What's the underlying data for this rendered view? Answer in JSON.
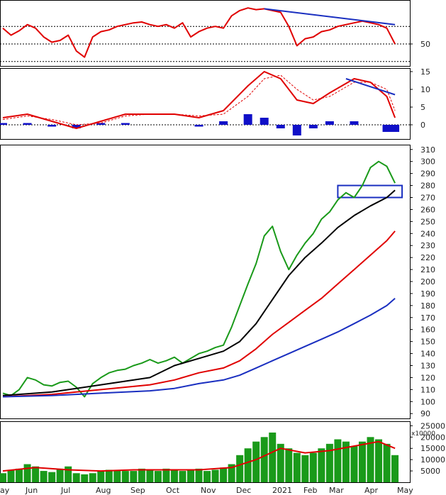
{
  "chart_data": [
    {
      "type": "line",
      "panel": "rsi",
      "y_ticks": [
        50
      ],
      "reference_levels": [
        30,
        50,
        70
      ],
      "ylim": [
        25,
        100
      ],
      "series": [
        {
          "color": "#e00000",
          "x": [
            "2020-05-25",
            "2020-06-01",
            "2020-06-08",
            "2020-06-15",
            "2020-06-22",
            "2020-06-29",
            "2020-07-06",
            "2020-07-13",
            "2020-07-20",
            "2020-07-27",
            "2020-08-03",
            "2020-08-10",
            "2020-08-17",
            "2020-08-24",
            "2020-08-31",
            "2020-09-07",
            "2020-09-14",
            "2020-09-21",
            "2020-09-28",
            "2020-10-05",
            "2020-10-12",
            "2020-10-19",
            "2020-10-26",
            "2020-11-02",
            "2020-11-09",
            "2020-11-16",
            "2020-11-23",
            "2020-11-30",
            "2020-12-07",
            "2020-12-14",
            "2020-12-21",
            "2020-12-28",
            "2021-01-04",
            "2021-01-11",
            "2021-01-18",
            "2021-01-25",
            "2021-02-01",
            "2021-02-08",
            "2021-02-15",
            "2021-02-22",
            "2021-03-01",
            "2021-03-08",
            "2021-03-15",
            "2021-03-22",
            "2021-03-29",
            "2021-04-05",
            "2021-04-12",
            "2021-04-19",
            "2021-04-26"
          ],
          "y": [
            68,
            60,
            65,
            72,
            68,
            58,
            52,
            54,
            60,
            42,
            35,
            58,
            64,
            66,
            70,
            72,
            74,
            75,
            72,
            70,
            72,
            68,
            74,
            58,
            64,
            68,
            70,
            68,
            82,
            88,
            91,
            89,
            90,
            88,
            86,
            70,
            48,
            56,
            58,
            64,
            66,
            70,
            72,
            74,
            76,
            74,
            72,
            68,
            50
          ]
        }
      ],
      "trendline": {
        "color": "#1a2fc0",
        "from": {
          "x": "2021-01-04",
          "y": 90
        },
        "to": {
          "x": "2021-04-26",
          "y": 72
        }
      }
    },
    {
      "type": "line",
      "panel": "macd",
      "y_ticks": [
        0,
        5,
        10,
        15
      ],
      "ylim": [
        -4,
        16
      ],
      "series": [
        {
          "color": "#e00000",
          "x": [
            "2020-05-25",
            "2020-06-15",
            "2020-07-06",
            "2020-07-27",
            "2020-08-17",
            "2020-09-07",
            "2020-09-28",
            "2020-10-19",
            "2020-11-09",
            "2020-11-30",
            "2020-12-21",
            "2021-01-04",
            "2021-01-18",
            "2021-02-01",
            "2021-02-15",
            "2021-03-01",
            "2021-03-22",
            "2021-04-05",
            "2021-04-19",
            "2021-04-26"
          ],
          "y": [
            2,
            3,
            1,
            -1,
            1,
            3,
            3,
            3,
            2,
            4,
            11,
            15,
            13,
            7,
            6,
            9,
            13,
            12,
            8,
            2
          ]
        },
        {
          "color": "#e00000",
          "dashed": true,
          "x": [
            "2020-05-25",
            "2020-06-15",
            "2020-07-06",
            "2020-07-27",
            "2020-08-17",
            "2020-09-07",
            "2020-09-28",
            "2020-10-19",
            "2020-11-09",
            "2020-11-30",
            "2020-12-21",
            "2021-01-04",
            "2021-01-18",
            "2021-02-01",
            "2021-02-15",
            "2021-03-01",
            "2021-03-22",
            "2021-04-05",
            "2021-04-19",
            "2021-04-26"
          ],
          "y": [
            1.5,
            2.5,
            1.5,
            0,
            0.5,
            2.5,
            3,
            3,
            2.5,
            3,
            8,
            13,
            14,
            10,
            7,
            8,
            12,
            12,
            10,
            4
          ]
        }
      ],
      "histogram": {
        "color": "#1010c8",
        "x": [
          "2020-05-25",
          "2020-06-15",
          "2020-07-06",
          "2020-07-27",
          "2020-08-17",
          "2020-09-07",
          "2020-09-28",
          "2020-10-19",
          "2020-11-09",
          "2020-11-30",
          "2020-12-21",
          "2021-01-04",
          "2021-01-18",
          "2021-02-01",
          "2021-02-15",
          "2021-03-01",
          "2021-03-22",
          "2021-04-05",
          "2021-04-19",
          "2021-04-26"
        ],
        "y": [
          0.5,
          0.5,
          -0.5,
          -1,
          0.5,
          0.5,
          0,
          0,
          -0.5,
          1,
          3,
          2,
          -1,
          -3,
          -1,
          1,
          1,
          0,
          -2,
          -2
        ]
      },
      "trendline": {
        "color": "#1a2fc0",
        "from": {
          "x": "2021-03-15",
          "y": 13
        },
        "to": {
          "x": "2021-04-26",
          "y": 8.5
        }
      }
    },
    {
      "type": "line",
      "panel": "price",
      "y_ticks": [
        90,
        100,
        110,
        120,
        130,
        140,
        150,
        160,
        170,
        180,
        190,
        200,
        210,
        220,
        230,
        240,
        250,
        260,
        270,
        280,
        290,
        300,
        310
      ],
      "ylim": [
        86,
        314
      ],
      "x_ticks": [
        "ay",
        "Jun",
        "Jul",
        "Aug",
        "Sep",
        "Oct",
        "Nov",
        "Dec",
        "2021",
        "Feb",
        "Mar",
        "Apr",
        "May"
      ],
      "series": [
        {
          "color": "#1a9a1a",
          "x": [
            "2020-05-25",
            "2020-06-01",
            "2020-06-08",
            "2020-06-15",
            "2020-06-22",
            "2020-06-29",
            "2020-07-06",
            "2020-07-13",
            "2020-07-20",
            "2020-07-27",
            "2020-08-03",
            "2020-08-10",
            "2020-08-17",
            "2020-08-24",
            "2020-08-31",
            "2020-09-07",
            "2020-09-14",
            "2020-09-21",
            "2020-09-28",
            "2020-10-05",
            "2020-10-12",
            "2020-10-19",
            "2020-10-26",
            "2020-11-02",
            "2020-11-09",
            "2020-11-16",
            "2020-11-23",
            "2020-11-30",
            "2020-12-07",
            "2020-12-14",
            "2020-12-21",
            "2020-12-28",
            "2021-01-04",
            "2021-01-11",
            "2021-01-18",
            "2021-01-25",
            "2021-02-01",
            "2021-02-08",
            "2021-02-15",
            "2021-02-22",
            "2021-03-01",
            "2021-03-08",
            "2021-03-15",
            "2021-03-22",
            "2021-03-29",
            "2021-04-05",
            "2021-04-12",
            "2021-04-19",
            "2021-04-26"
          ],
          "y": [
            107,
            105,
            110,
            120,
            118,
            114,
            113,
            116,
            117,
            112,
            104,
            115,
            120,
            124,
            126,
            127,
            130,
            132,
            135,
            132,
            134,
            137,
            132,
            136,
            140,
            142,
            145,
            147,
            162,
            180,
            198,
            215,
            238,
            246,
            225,
            210,
            222,
            232,
            240,
            252,
            258,
            268,
            274,
            270,
            280,
            295,
            300,
            296,
            282
          ]
        },
        {
          "color": "#000000",
          "x": [
            "2020-05-25",
            "2020-07-06",
            "2020-08-17",
            "2020-09-28",
            "2020-10-19",
            "2020-11-09",
            "2020-11-30",
            "2020-12-14",
            "2020-12-28",
            "2021-01-11",
            "2021-01-25",
            "2021-02-08",
            "2021-02-22",
            "2021-03-08",
            "2021-03-22",
            "2021-04-05",
            "2021-04-19",
            "2021-04-26"
          ],
          "y": [
            105,
            108,
            114,
            120,
            130,
            136,
            142,
            150,
            165,
            185,
            205,
            220,
            232,
            245,
            255,
            263,
            270,
            276
          ]
        },
        {
          "color": "#e00000",
          "x": [
            "2020-05-25",
            "2020-07-06",
            "2020-08-17",
            "2020-09-28",
            "2020-10-19",
            "2020-11-09",
            "2020-11-30",
            "2020-12-14",
            "2020-12-28",
            "2021-01-11",
            "2021-01-25",
            "2021-02-08",
            "2021-02-22",
            "2021-03-08",
            "2021-03-22",
            "2021-04-05",
            "2021-04-19",
            "2021-04-26"
          ],
          "y": [
            104,
            106,
            110,
            114,
            118,
            124,
            128,
            134,
            144,
            156,
            166,
            176,
            186,
            198,
            210,
            222,
            234,
            242
          ]
        },
        {
          "color": "#1a2fc0",
          "x": [
            "2020-05-25",
            "2020-07-06",
            "2020-08-17",
            "2020-09-28",
            "2020-10-19",
            "2020-11-09",
            "2020-11-30",
            "2020-12-14",
            "2020-12-28",
            "2021-01-11",
            "2021-01-25",
            "2021-02-08",
            "2021-02-22",
            "2021-03-08",
            "2021-03-22",
            "2021-04-05",
            "2021-04-19",
            "2021-04-26"
          ],
          "y": [
            104,
            105,
            107,
            109,
            111,
            115,
            118,
            122,
            128,
            134,
            140,
            146,
            152,
            158,
            165,
            172,
            180,
            186
          ]
        }
      ],
      "zone": {
        "color": "#1a2fc0",
        "x_from": "2021-03-08",
        "x_to": "2021-04-26",
        "y_from": 270,
        "y_to": 280
      }
    },
    {
      "type": "bar",
      "panel": "volume",
      "unit_label": "x10000",
      "y_ticks": [
        5000,
        10000,
        15000,
        20000,
        25000
      ],
      "ylim": [
        0,
        27000
      ],
      "series": [
        {
          "color": "#1a9a1a",
          "x": [
            "2020-05-25",
            "2020-06-01",
            "2020-06-08",
            "2020-06-15",
            "2020-06-22",
            "2020-06-29",
            "2020-07-06",
            "2020-07-13",
            "2020-07-20",
            "2020-07-27",
            "2020-08-03",
            "2020-08-10",
            "2020-08-17",
            "2020-08-24",
            "2020-08-31",
            "2020-09-07",
            "2020-09-14",
            "2020-09-21",
            "2020-09-28",
            "2020-10-05",
            "2020-10-12",
            "2020-10-19",
            "2020-10-26",
            "2020-11-02",
            "2020-11-09",
            "2020-11-16",
            "2020-11-23",
            "2020-11-30",
            "2020-12-07",
            "2020-12-14",
            "2020-12-21",
            "2020-12-28",
            "2021-01-04",
            "2021-01-11",
            "2021-01-18",
            "2021-01-25",
            "2021-02-01",
            "2021-02-08",
            "2021-02-15",
            "2021-02-22",
            "2021-03-01",
            "2021-03-08",
            "2021-03-15",
            "2021-03-22",
            "2021-03-29",
            "2021-04-05",
            "2021-04-12",
            "2021-04-19",
            "2021-04-26"
          ],
          "y": [
            4000,
            5500,
            6000,
            8000,
            7000,
            5000,
            4500,
            6000,
            7000,
            4000,
            3500,
            4000,
            5000,
            5500,
            5500,
            5000,
            5000,
            6000,
            5500,
            5000,
            6000,
            5500,
            5000,
            5500,
            6000,
            5000,
            5500,
            6500,
            8000,
            12000,
            15000,
            18000,
            20000,
            22000,
            17000,
            15000,
            13000,
            12000,
            13000,
            15000,
            17000,
            19000,
            18000,
            16000,
            18000,
            20000,
            19000,
            17000,
            12000
          ]
        },
        {
          "color": "#e00000",
          "line": true,
          "x": [
            "2020-05-25",
            "2020-06-22",
            "2020-07-20",
            "2020-08-17",
            "2020-09-14",
            "2020-10-12",
            "2020-11-09",
            "2020-12-07",
            "2020-12-28",
            "2021-01-18",
            "2021-02-08",
            "2021-03-01",
            "2021-03-22",
            "2021-04-12",
            "2021-04-26"
          ],
          "y": [
            5000,
            6500,
            5500,
            5000,
            5500,
            5500,
            5500,
            6500,
            10000,
            15000,
            13000,
            14000,
            16000,
            18000,
            15000
          ]
        }
      ]
    }
  ]
}
